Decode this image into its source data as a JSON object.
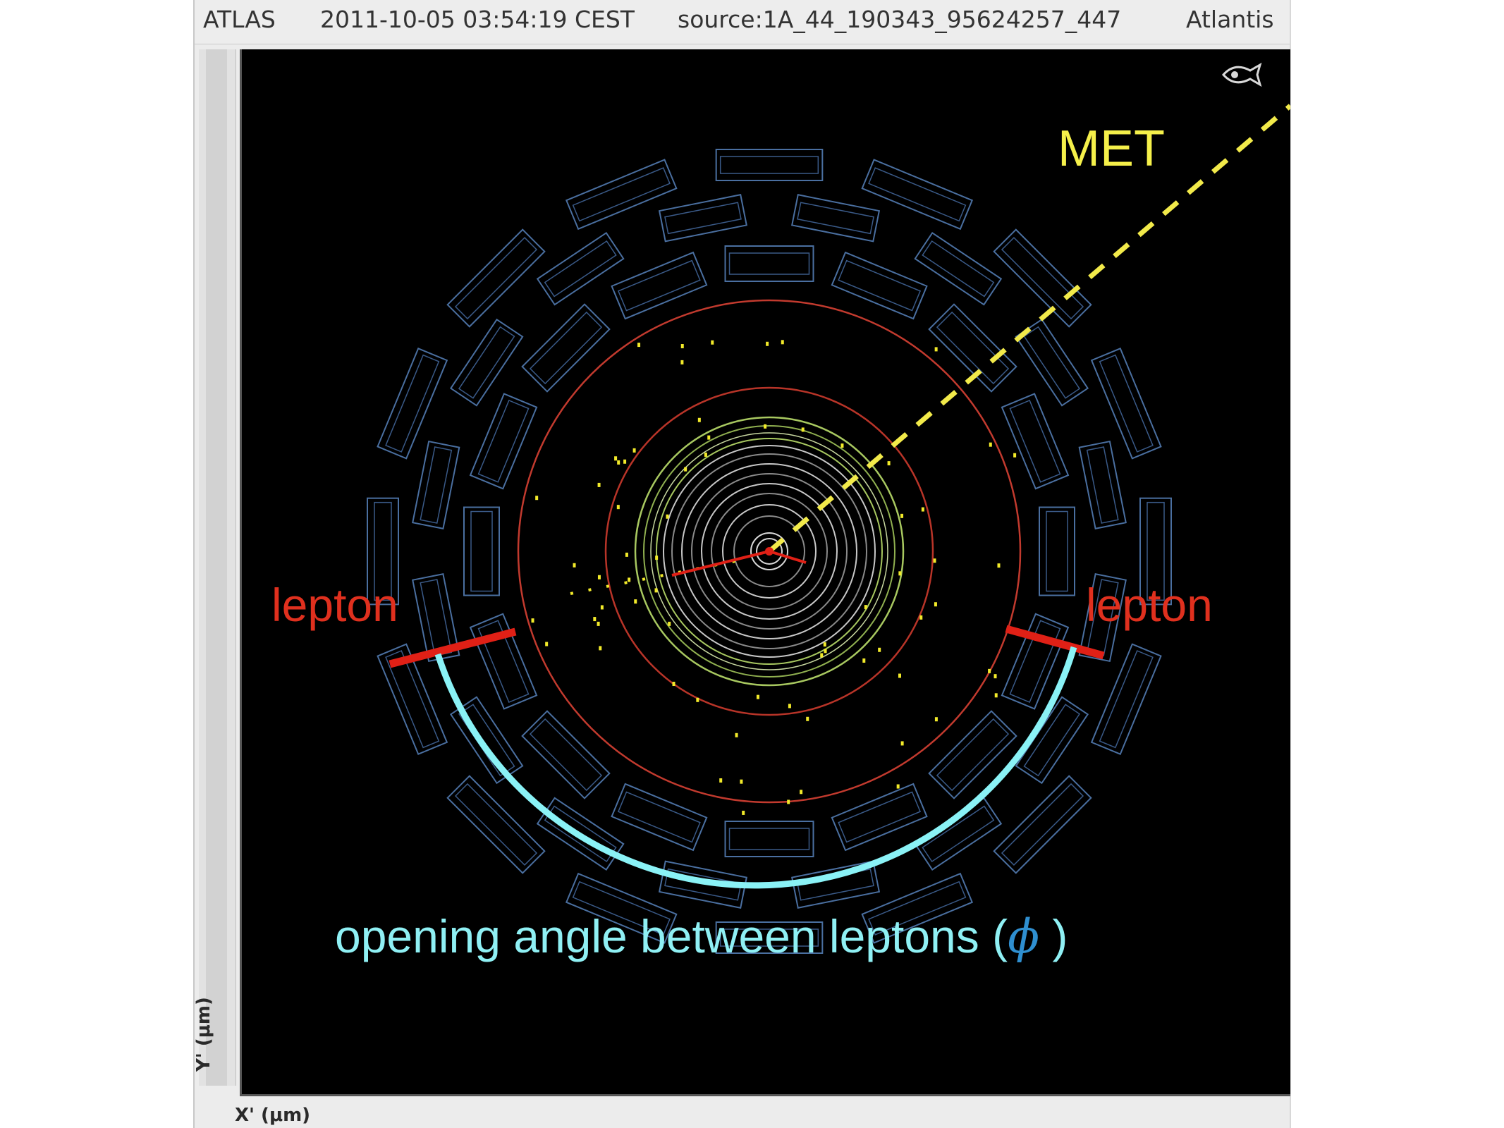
{
  "header": {
    "experiment": "ATLAS",
    "timestamp": "2011-10-05 03:54:19 CEST",
    "source": "source:1A_44_190343_95624257_447",
    "app": "Atlantis"
  },
  "axes": {
    "y_label": "Y' (μm)",
    "x_label": "X' (μm)"
  },
  "annotations": {
    "met": "MET",
    "lepton_left": "lepton",
    "lepton_right": "lepton",
    "opening_angle_text": "opening angle between leptons (",
    "opening_angle_symbol": "ϕ",
    "opening_angle_close": " )"
  },
  "colors": {
    "muon_chambers": "#4a6fa0",
    "calorimeter_ring": "#c23a2e",
    "trt_ring": "#a8c860",
    "silicon_rings": "#c8c8c8",
    "met_line": "#f2ea4a",
    "lepton": "#e02016",
    "angle_arc": "#8af2f6",
    "hits": "#f2ea2a"
  },
  "icons": {
    "view": "eye-fish-icon"
  }
}
